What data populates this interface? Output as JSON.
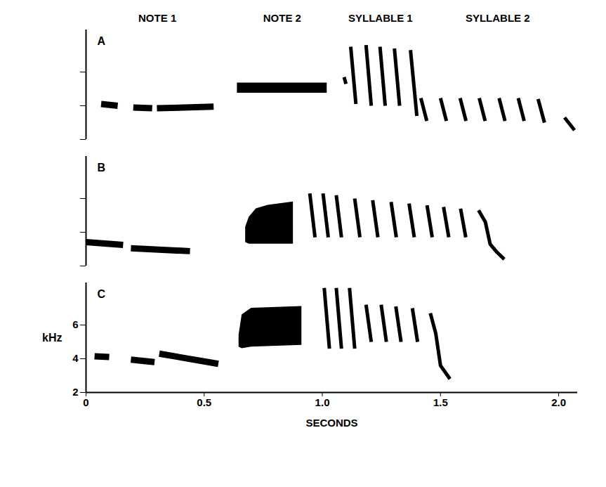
{
  "chart_data": {
    "type": "sonogram",
    "x_label": "SECONDS",
    "y_label": "kHz",
    "xlim": [
      0,
      2.08
    ],
    "xticks": [
      0,
      0.5,
      {
        "value": 1,
        "label": "1.0"
      },
      1.5,
      {
        "value": 2,
        "label": "2.0"
      }
    ],
    "ylim": [
      2,
      8.5
    ],
    "yticks": [
      2,
      4,
      6
    ],
    "color": "#000000",
    "parts": [
      "NOTE 1",
      "NOTE 2",
      "SYLLABLE 1",
      "SYLLABLE 2"
    ],
    "panels": [
      {
        "name": "A",
        "tick_labels": false,
        "series": [
          {
            "part": "NOTE 1",
            "type": "line",
            "t": [
              0.064,
              0.134
            ],
            "f": [
              4.1,
              4.0
            ]
          },
          {
            "part": "NOTE 1",
            "type": "line",
            "t": [
              0.2,
              0.28
            ],
            "f": [
              3.9,
              3.85
            ]
          },
          {
            "part": "NOTE 1",
            "type": "line",
            "t": [
              0.3,
              0.54
            ],
            "f": [
              3.85,
              3.95
            ]
          },
          {
            "part": "NOTE 2",
            "type": "area",
            "t": [
              0.64,
              1.02
            ],
            "low": [
              4.75,
              4.75
            ],
            "high": [
              5.35,
              5.35
            ]
          },
          {
            "part": "SYLLABLE 1",
            "type": "line",
            "t": [
              1.092,
              1.1
            ],
            "f": [
              5.7,
              5.3
            ]
          },
          {
            "part": "SYLLABLE 1",
            "type": "line",
            "t": [
              1.12,
              1.142
            ],
            "f": [
              7.5,
              4.1
            ]
          },
          {
            "part": "SYLLABLE 1",
            "type": "line",
            "t": [
              1.185,
              1.207
            ],
            "f": [
              7.6,
              4.0
            ]
          },
          {
            "part": "SYLLABLE 1",
            "type": "line",
            "t": [
              1.244,
              1.266
            ],
            "f": [
              7.5,
              4.0
            ]
          },
          {
            "part": "SYLLABLE 1",
            "type": "line",
            "t": [
              1.305,
              1.327
            ],
            "f": [
              7.4,
              4.0
            ]
          },
          {
            "part": "SYLLABLE 1",
            "type": "line",
            "t": [
              1.373,
              1.4
            ],
            "f": [
              7.3,
              3.4
            ]
          },
          {
            "part": "SYLLABLE 2",
            "type": "line",
            "t": [
              1.417,
              1.442
            ],
            "f": [
              4.45,
              3.1
            ]
          },
          {
            "part": "SYLLABLE 2",
            "type": "line",
            "t": [
              1.5,
              1.525
            ],
            "f": [
              4.45,
              3.1
            ]
          },
          {
            "part": "SYLLABLE 2",
            "type": "line",
            "t": [
              1.583,
              1.608
            ],
            "f": [
              4.45,
              3.1
            ]
          },
          {
            "part": "SYLLABLE 2",
            "type": "line",
            "t": [
              1.664,
              1.689
            ],
            "f": [
              4.45,
              3.1
            ]
          },
          {
            "part": "SYLLABLE 2",
            "type": "line",
            "t": [
              1.748,
              1.773
            ],
            "f": [
              4.45,
              3.1
            ]
          },
          {
            "part": "SYLLABLE 2",
            "type": "line",
            "t": [
              1.829,
              1.854
            ],
            "f": [
              4.45,
              3.1
            ]
          },
          {
            "part": "SYLLABLE 2",
            "type": "line",
            "t": [
              1.913,
              1.94
            ],
            "f": [
              4.4,
              3.0
            ]
          },
          {
            "part": "SYLLABLE 2",
            "type": "line",
            "t": [
              2.025,
              2.067
            ],
            "f": [
              3.3,
              2.55
            ]
          }
        ]
      },
      {
        "name": "B",
        "tick_labels": false,
        "series": [
          {
            "part": "NOTE 1",
            "type": "line",
            "t": [
              0.0,
              0.157
            ],
            "f": [
              3.42,
              3.25
            ]
          },
          {
            "part": "NOTE 1",
            "type": "line",
            "t": [
              0.19,
              0.44
            ],
            "f": [
              3.05,
              2.88
            ]
          },
          {
            "part": "NOTE 2",
            "type": "area",
            "t": [
              0.675,
              0.69,
              0.72,
              0.77,
              0.877
            ],
            "low": [
              3.4,
              3.3,
              3.3,
              3.3,
              3.3
            ],
            "high": [
              4.3,
              4.9,
              5.4,
              5.6,
              5.8
            ]
          },
          {
            "part": "SYLLABLE 1",
            "type": "line",
            "t": [
              0.947,
              0.969
            ],
            "f": [
              6.3,
              3.7
            ]
          },
          {
            "part": "SYLLABLE 1",
            "type": "line",
            "t": [
              1.003,
              1.025
            ],
            "f": [
              6.3,
              3.7
            ]
          },
          {
            "part": "SYLLABLE 1",
            "type": "line",
            "t": [
              1.059,
              1.081
            ],
            "f": [
              6.2,
              3.7
            ]
          },
          {
            "part": "SYLLABLE 1",
            "type": "line",
            "t": [
              1.137,
              1.159
            ],
            "f": [
              6.0,
              3.7
            ]
          },
          {
            "part": "SYLLABLE 1",
            "type": "line",
            "t": [
              1.213,
              1.235
            ],
            "f": [
              5.9,
              3.7
            ]
          },
          {
            "part": "SYLLABLE 1",
            "type": "line",
            "t": [
              1.291,
              1.313
            ],
            "f": [
              5.8,
              3.7
            ]
          },
          {
            "part": "SYLLABLE 1",
            "type": "line",
            "t": [
              1.367,
              1.389
            ],
            "f": [
              5.7,
              3.7
            ]
          },
          {
            "part": "SYLLABLE 1",
            "type": "line",
            "t": [
              1.443,
              1.465
            ],
            "f": [
              5.6,
              3.7
            ]
          },
          {
            "part": "SYLLABLE 1",
            "type": "line",
            "t": [
              1.513,
              1.535
            ],
            "f": [
              5.5,
              3.7
            ]
          },
          {
            "part": "SYLLABLE 1",
            "type": "line",
            "t": [
              1.585,
              1.607
            ],
            "f": [
              5.4,
              3.7
            ]
          },
          {
            "part": "SYLLABLE 2",
            "type": "line",
            "t": [
              1.661,
              1.69,
              1.71,
              1.74,
              1.77
            ],
            "f": [
              5.3,
              4.6,
              3.3,
              2.8,
              2.4
            ]
          }
        ]
      },
      {
        "name": "C",
        "series": [
          {
            "part": "NOTE 1",
            "type": "line",
            "t": [
              0.036,
              0.098
            ],
            "f": [
              4.15,
              4.1
            ]
          },
          {
            "part": "NOTE 1",
            "type": "line",
            "t": [
              0.19,
              0.29
            ],
            "f": [
              3.95,
              3.8
            ]
          },
          {
            "part": "NOTE 1",
            "type": "line",
            "t": [
              0.31,
              0.56
            ],
            "f": [
              4.3,
              3.7
            ]
          },
          {
            "part": "NOTE 2",
            "type": "area",
            "t": [
              0.647,
              0.66,
              0.7,
              0.913
            ],
            "low": [
              4.7,
              4.6,
              4.7,
              4.8
            ],
            "high": [
              5.4,
              6.6,
              7.0,
              7.1
            ]
          },
          {
            "part": "SYLLABLE 1",
            "type": "line",
            "t": [
              1.008,
              1.03
            ],
            "f": [
              8.2,
              4.6
            ]
          },
          {
            "part": "SYLLABLE 1",
            "type": "line",
            "t": [
              1.059,
              1.081
            ],
            "f": [
              8.2,
              4.6
            ]
          },
          {
            "part": "SYLLABLE 1",
            "type": "line",
            "t": [
              1.115,
              1.137
            ],
            "f": [
              8.2,
              4.6
            ]
          },
          {
            "part": "SYLLABLE 2",
            "type": "line",
            "t": [
              1.185,
              1.207
            ],
            "f": [
              7.2,
              5.0
            ]
          },
          {
            "part": "SYLLABLE 2",
            "type": "line",
            "t": [
              1.249,
              1.271
            ],
            "f": [
              7.2,
              5.0
            ]
          },
          {
            "part": "SYLLABLE 2",
            "type": "line",
            "t": [
              1.311,
              1.333
            ],
            "f": [
              7.1,
              5.0
            ]
          },
          {
            "part": "SYLLABLE 2",
            "type": "line",
            "t": [
              1.381,
              1.403
            ],
            "f": [
              7.0,
              5.0
            ]
          },
          {
            "part": "SYLLABLE 2",
            "type": "line",
            "t": [
              1.457,
              1.48,
              1.5,
              1.54
            ],
            "f": [
              6.7,
              5.5,
              3.6,
              2.8
            ]
          }
        ]
      }
    ]
  }
}
